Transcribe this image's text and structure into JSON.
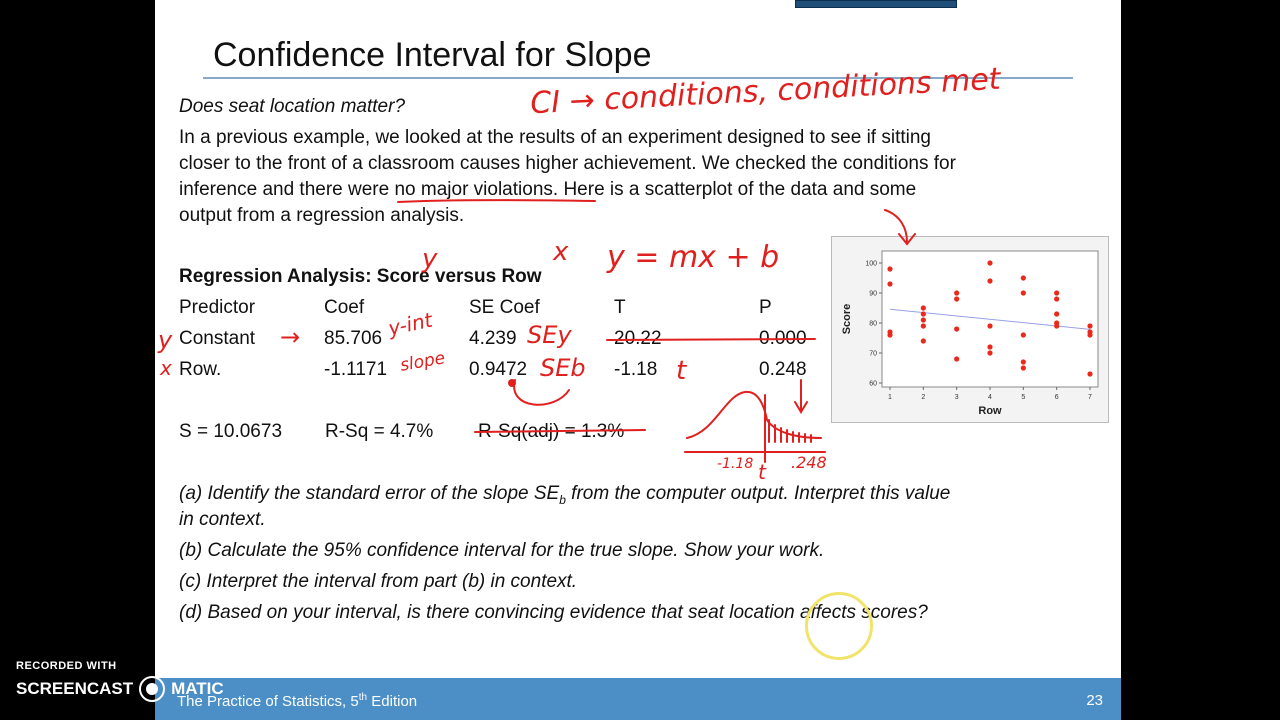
{
  "slide": {
    "title": "Confidence Interval for Slope",
    "question": "Does seat location matter?",
    "intro": [
      {
        "pre": "In a previous example, we looked at the results of an experiment designed to see if sitting"
      },
      {
        "pre": "closer to the front of a classroom causes higher achievement. We checked the conditions for"
      },
      {
        "pre": "inference and there were ",
        "underlined": "no major violations",
        "post": ". Here is a scatterplot of the data and some"
      },
      {
        "pre": "output from a regression analysis."
      }
    ],
    "regression": {
      "heading": "Regression Analysis: Score versus Row",
      "headers": [
        "Predictor",
        "Coef",
        "SE Coef",
        "T",
        "P"
      ],
      "rows": [
        [
          "Constant",
          "85.706",
          "4.239",
          "20.22",
          "0.000"
        ],
        [
          "Row.",
          "-1.1171",
          "0.9472",
          "-1.18",
          "0.248"
        ]
      ],
      "s_stat": "S = 10.0673",
      "rsq": "R-Sq = 4.7%",
      "rsq_adj": "R-Sq(adj) = 1.3%"
    },
    "questions": {
      "a1_pre": "(a) Identify the standard error of the slope SE",
      "a1_sub": "b",
      "a1_post": " from the computer output. Interpret this value",
      "a2": "in context.",
      "b": "(b) Calculate the 95% confidence interval for the true slope. Show your work.",
      "c": "(c) Interpret the interval from part (b) in context.",
      "d": "(d) Based on your interval, is there convincing evidence that seat location affects scores?"
    },
    "footer": {
      "book_pre": "The Practice of Statistics, 5",
      "book_sup": "th",
      "book_post": " Edition",
      "page": "23"
    }
  },
  "handwriting": {
    "conditions": "CI → conditions, conditions met",
    "y_over_predictor": "y",
    "x_over_row": "x",
    "equation": "y = mx + b",
    "y_margin": "y",
    "x_margin": "x",
    "arrow": "→",
    "yint": "y-int",
    "slope": "slope",
    "sey": "SEy",
    "seb": "SEb",
    "t": "t",
    "neg118": "-1.18",
    "t2": "t",
    "p248": ".248"
  },
  "chart_data": {
    "type": "scatter",
    "xlabel": "Row",
    "ylabel": "Score",
    "xlim": [
      1,
      7
    ],
    "ylim": [
      60,
      100
    ],
    "xticks": [
      "1",
      "2",
      "3",
      "4",
      "5",
      "6",
      "7"
    ],
    "yticks": [
      "60",
      "70",
      "80",
      "90",
      "100"
    ],
    "points": [
      [
        1,
        98
      ],
      [
        1,
        93
      ],
      [
        1,
        77
      ],
      [
        1,
        76
      ],
      [
        2,
        85
      ],
      [
        2,
        83
      ],
      [
        2,
        81
      ],
      [
        2,
        79
      ],
      [
        2,
        74
      ],
      [
        3,
        90
      ],
      [
        3,
        88
      ],
      [
        3,
        78
      ],
      [
        3,
        68
      ],
      [
        4,
        100
      ],
      [
        4,
        94
      ],
      [
        4,
        79
      ],
      [
        4,
        72
      ],
      [
        4,
        70
      ],
      [
        5,
        95
      ],
      [
        5,
        90
      ],
      [
        5,
        76
      ],
      [
        5,
        67
      ],
      [
        5,
        65
      ],
      [
        6,
        90
      ],
      [
        6,
        88
      ],
      [
        6,
        83
      ],
      [
        6,
        80
      ],
      [
        6,
        79
      ],
      [
        7,
        79
      ],
      [
        7,
        77
      ],
      [
        7,
        76
      ],
      [
        7,
        63
      ]
    ],
    "fit_line": {
      "intercept": 85.706,
      "slope": -1.1171
    },
    "point_color": "#e8291c",
    "line_color": "#9aa0e8"
  },
  "watermark": {
    "recorded": "RECORDED WITH",
    "brand_pre": "SCREENCAST",
    "brand_post": "MATIC"
  }
}
